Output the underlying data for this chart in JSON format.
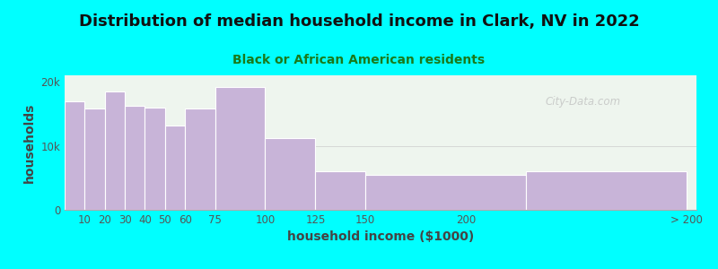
{
  "title": "Distribution of median household income in Clark, NV in 2022",
  "subtitle": "Black or African American residents",
  "xlabel": "household income ($1000)",
  "ylabel": "households",
  "background_color": "#00ffff",
  "plot_bg_color": "#eef5ee",
  "bar_color": "#c8b4d8",
  "bar_edge_color": "#ffffff",
  "categories": [
    "10",
    "20",
    "30",
    "40",
    "50",
    "60",
    "75",
    "100",
    "125",
    "150",
    "200",
    "> 200"
  ],
  "values": [
    17000,
    15800,
    18500,
    16200,
    16000,
    13200,
    15800,
    19200,
    11200,
    6000,
    5400,
    6000
  ],
  "ylim": [
    0,
    21000
  ],
  "yticks": [
    0,
    10000,
    20000
  ],
  "ytick_labels": [
    "0",
    "10k",
    "20k"
  ],
  "title_fontsize": 13,
  "subtitle_fontsize": 10,
  "axis_label_fontsize": 10,
  "tick_fontsize": 8.5,
  "title_color": "#111111",
  "subtitle_color": "#1a7a1a",
  "axis_label_color": "#444444",
  "watermark": "City-Data.com",
  "bin_lefts": [
    0,
    10,
    20,
    30,
    40,
    50,
    60,
    75,
    100,
    125,
    150,
    230
  ],
  "bin_rights": [
    10,
    20,
    30,
    40,
    50,
    60,
    75,
    100,
    125,
    150,
    230,
    310
  ]
}
